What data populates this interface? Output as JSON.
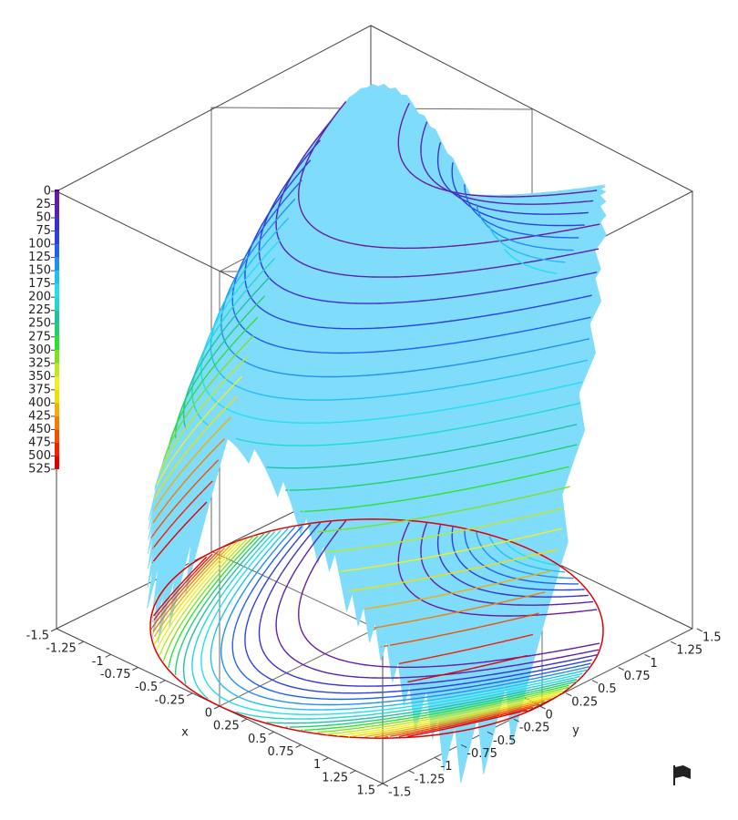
{
  "chart_data": {
    "type": "surface3d",
    "x_label": "x",
    "y_label": "y",
    "xlim": [
      -1.5,
      1.5
    ],
    "ylim": [
      -1.5,
      1.5
    ],
    "xticks": [
      -1.5,
      -1.25,
      -1,
      -0.75,
      -0.5,
      -0.25,
      0,
      0.25,
      0.5,
      0.75,
      1,
      1.25,
      1.5
    ],
    "yticks": [
      -1.5,
      -1.25,
      -1,
      -0.75,
      -0.5,
      -0.25,
      0,
      0.25,
      0.5,
      0.75,
      1,
      1.25,
      1.5
    ],
    "zlim": [
      0,
      525
    ],
    "zticks": [
      0,
      25,
      50,
      75,
      100,
      125,
      150,
      175,
      200,
      225,
      250,
      275,
      300,
      325,
      350,
      375,
      400,
      425,
      450,
      475,
      500,
      525
    ],
    "level_colors": [
      "#4b0082",
      "#6a1aa0",
      "#5a20b0",
      "#3a30d0",
      "#2a40e0",
      "#2060f0",
      "#2090f0",
      "#20c0f0",
      "#20e0f0",
      "#20d8d0",
      "#20c0a0",
      "#20d070",
      "#30e030",
      "#80e020",
      "#c0e820",
      "#f0f020",
      "#f0e000",
      "#f0b000",
      "#f08000",
      "#f05000",
      "#f02000",
      "#e00000"
    ],
    "surface_color": "#7fdcfb"
  }
}
